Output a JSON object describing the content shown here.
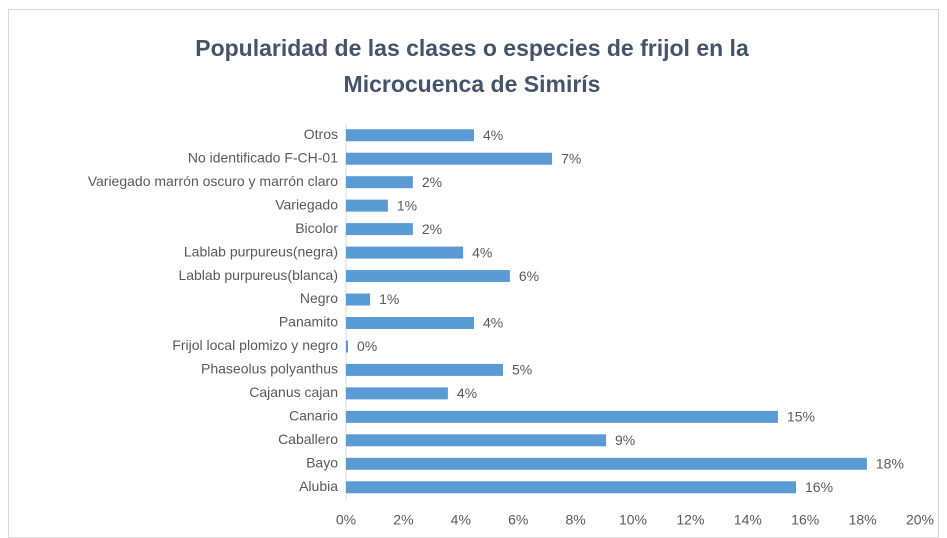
{
  "chart_data": {
    "type": "bar",
    "orientation": "horizontal",
    "title": [
      "Popularidad de las clases o especies de frijol en la",
      "Microcuenca de Simirís"
    ],
    "categories": [
      "Otros",
      "No identificado F-CH-01",
      "Variegado marrón oscuro y marrón claro",
      "Variegado",
      "Bicolor",
      "Lablab purpureus(negra)",
      "Lablab purpureus(blanca)",
      "Negro",
      "Panamito",
      "Frijol local plomizo y negro",
      "Phaseolus polyanthus",
      "Cajanus cajan",
      "Canario",
      "Caballero",
      "Bayo",
      "Alubia"
    ],
    "values": [
      4.46,
      7.18,
      2.33,
      1.46,
      2.33,
      4.08,
      5.71,
      0.84,
      4.46,
      0.07,
      5.47,
      3.55,
      15.05,
      9.06,
      18.15,
      15.68
    ],
    "value_labels": [
      "4%",
      "7%",
      "2%",
      "1%",
      "2%",
      "4%",
      "6%",
      "1%",
      "4%",
      "0%",
      "5%",
      "4%",
      "15%",
      "9%",
      "18%",
      "16%"
    ],
    "color": "#5b9bd5",
    "xlim": [
      0,
      20
    ],
    "xticks": [
      {
        "value": 0,
        "label": "0%"
      },
      {
        "value": 2,
        "label": "2%"
      },
      {
        "value": 4,
        "label": "4%"
      },
      {
        "value": 6,
        "label": "6%"
      },
      {
        "value": 8,
        "label": "8%"
      },
      {
        "value": 10,
        "label": "10%"
      },
      {
        "value": 12,
        "label": "12%"
      },
      {
        "value": 14,
        "label": "14%"
      },
      {
        "value": 16,
        "label": "16%"
      },
      {
        "value": 18,
        "label": "18%"
      },
      {
        "value": 20,
        "label": "20%"
      }
    ],
    "grid": false
  }
}
